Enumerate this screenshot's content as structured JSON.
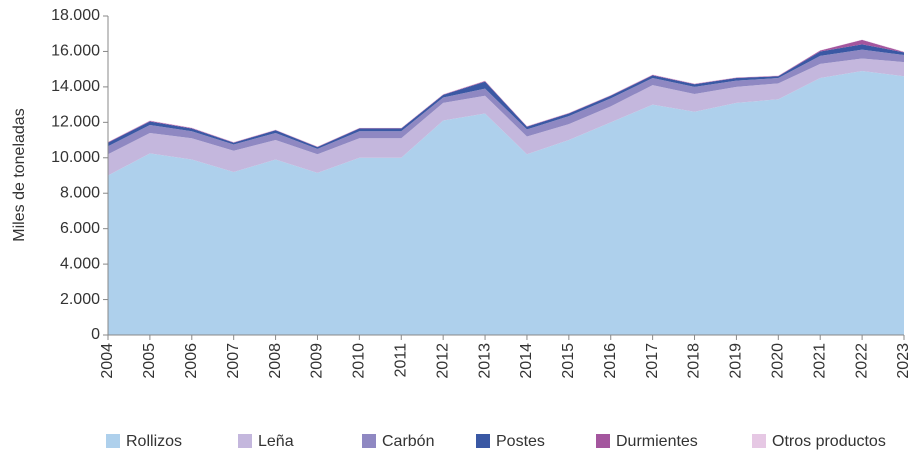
{
  "chart_data": {
    "type": "stacked_area",
    "y_axis_label": "Miles de toneladas",
    "categories": [
      "2004",
      "2005",
      "2006",
      "2007",
      "2008",
      "2009",
      "2010",
      "2011",
      "2012",
      "2013",
      "2014",
      "2015",
      "2016",
      "2017",
      "2018",
      "2019",
      "2020",
      "2021",
      "2022",
      "2023"
    ],
    "series": [
      {
        "name": "Rollizos",
        "color": "#aed0ec",
        "values": [
          9000,
          10250,
          9900,
          9200,
          9900,
          9150,
          10000,
          10000,
          12100,
          12500,
          10200,
          11000,
          12000,
          13000,
          12600,
          13100,
          13300,
          14500,
          14900,
          14600
        ]
      },
      {
        "name": "Leña",
        "color": "#c4b7dd",
        "values": [
          1200,
          1150,
          1200,
          1200,
          1100,
          1050,
          1100,
          1100,
          1000,
          1000,
          1000,
          900,
          900,
          1100,
          1000,
          900,
          900,
          800,
          700,
          800
        ]
      },
      {
        "name": "Carbón",
        "color": "#8f88c2",
        "values": [
          450,
          450,
          400,
          350,
          400,
          300,
          400,
          400,
          300,
          400,
          400,
          450,
          450,
          400,
          400,
          350,
          300,
          450,
          500,
          400
        ]
      },
      {
        "name": "Postes",
        "color": "#3a58a4",
        "values": [
          200,
          200,
          150,
          100,
          150,
          100,
          150,
          150,
          150,
          400,
          150,
          150,
          150,
          150,
          150,
          150,
          100,
          250,
          300,
          150
        ]
      },
      {
        "name": "Durmientes",
        "color": "#a4569e",
        "values": [
          30,
          30,
          30,
          20,
          20,
          20,
          20,
          20,
          20,
          30,
          20,
          20,
          20,
          30,
          20,
          20,
          20,
          50,
          250,
          20
        ]
      },
      {
        "name": "Otros productos",
        "color": "#e6c8e4",
        "values": [
          20,
          20,
          20,
          20,
          20,
          20,
          20,
          20,
          20,
          20,
          20,
          20,
          20,
          20,
          20,
          20,
          20,
          20,
          20,
          20
        ]
      }
    ],
    "ylim": [
      0,
      18000
    ],
    "yticks": [
      0,
      {
        "value": 2000,
        "label": "2.000"
      },
      {
        "value": 4000,
        "label": "4.000"
      },
      {
        "value": 6000,
        "label": "6.000"
      },
      {
        "value": 8000,
        "label": "8.000"
      },
      {
        "value": 10000,
        "label": "10.000"
      },
      {
        "value": 12000,
        "label": "12.000"
      },
      {
        "value": 14000,
        "label": "14.000"
      },
      {
        "value": 16000,
        "label": "16.000"
      },
      {
        "value": 18000,
        "label": "18.000"
      }
    ],
    "legend": "bottom"
  }
}
